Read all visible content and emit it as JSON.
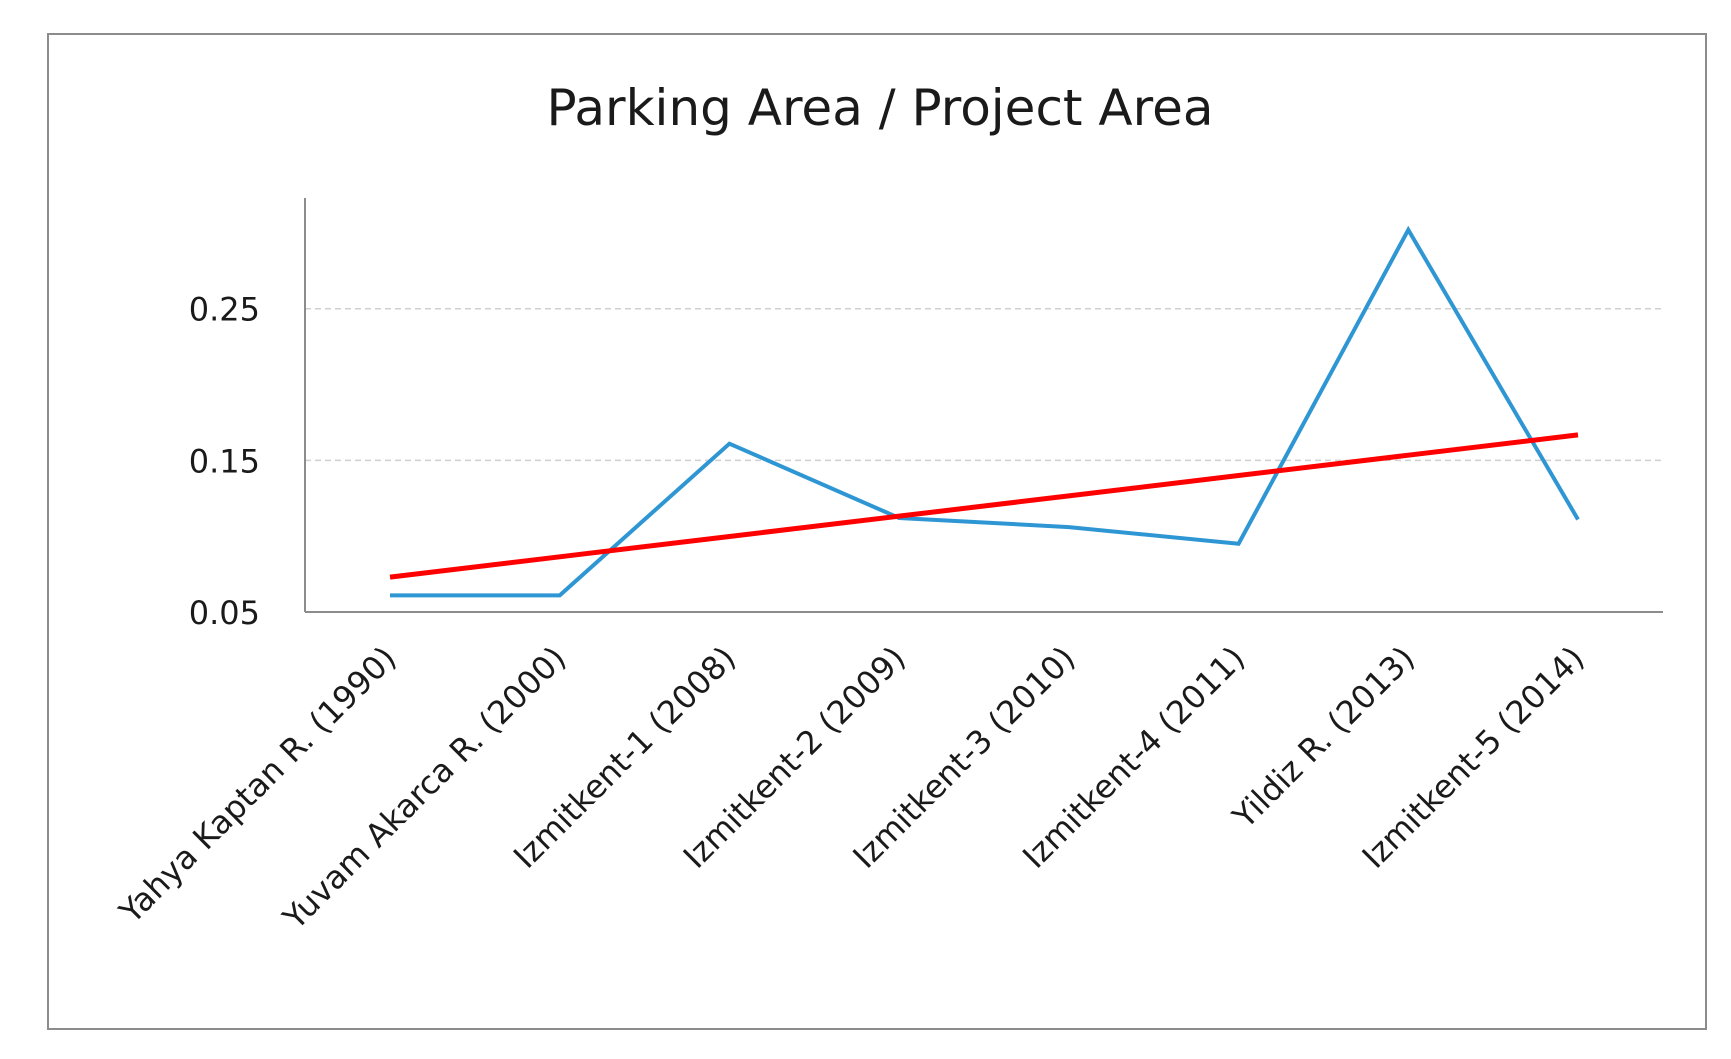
{
  "chart_data": {
    "type": "line",
    "title": "Parking Area / Project Area",
    "xlabel": "",
    "ylabel": "",
    "categories": [
      "Yahya Kaptan R. (1990)",
      "Yuvam Akarca R. (2000)",
      "Izmitkent-1 (2008)",
      "Izmitkent-2 (2009)",
      "Izmitkent-3 (2010)",
      "Izmitkent-4 (2011)",
      "Yildiz R. (2013)",
      "Izmitkent-5 (2014)"
    ],
    "yticks": [
      0.05,
      0.15,
      0.25
    ],
    "ytick_labels": [
      "0.05",
      "0.15",
      "0.25"
    ],
    "ylim": [
      0.05,
      0.323
    ],
    "grid": true,
    "series": [
      {
        "values": [
          0.061,
          0.061,
          0.161,
          0.112,
          0.106,
          0.095,
          0.302,
          0.111
        ],
        "color": "#2f96d4"
      },
      {
        "values": [
          0.073,
          0.0864,
          0.0998,
          0.1132,
          0.1266,
          0.14,
          0.1534,
          0.1668
        ],
        "color": "#ff0000"
      }
    ]
  }
}
